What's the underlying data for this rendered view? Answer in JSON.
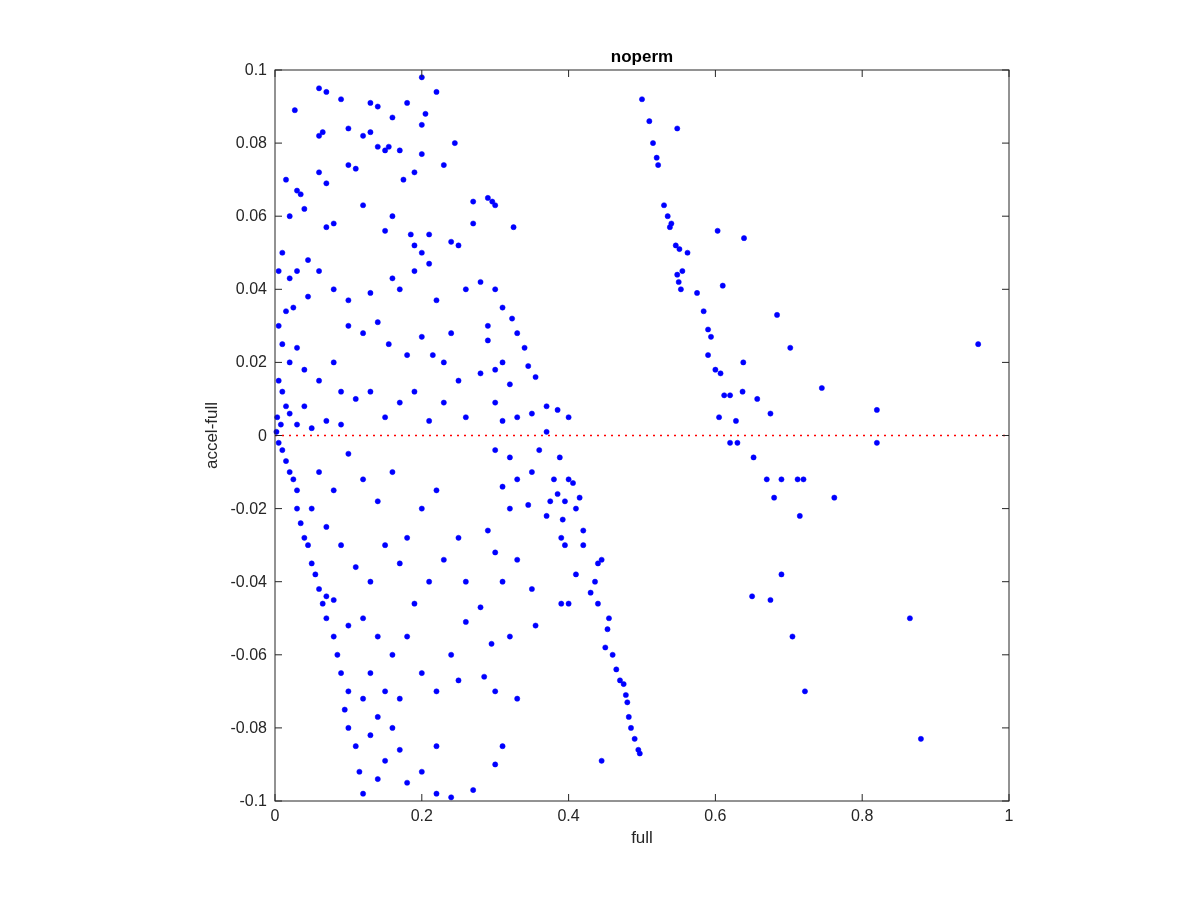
{
  "chart_data": {
    "type": "scatter",
    "title": "noperm",
    "xlabel": "full",
    "ylabel": "accel-full",
    "xlim": [
      0,
      1
    ],
    "ylim": [
      -0.1,
      0.1
    ],
    "xticks": [
      0,
      0.2,
      0.4,
      0.6,
      0.8,
      1
    ],
    "yticks": [
      -0.1,
      -0.08,
      -0.06,
      -0.04,
      -0.02,
      0,
      0.02,
      0.04,
      0.06,
      0.08,
      0.1
    ],
    "grid": false,
    "marker": "circle",
    "ref_lines": [
      {
        "axis": "y",
        "value": 0,
        "color": "#ff0000",
        "line_style": "dotted"
      }
    ],
    "series": [
      {
        "color": "#0000ff",
        "x": [
          0.5,
          0.51,
          0.515,
          0.52,
          0.522,
          0.548,
          0.53,
          0.535,
          0.538,
          0.54,
          0.546,
          0.551,
          0.562,
          0.548,
          0.55,
          0.553,
          0.555,
          0.575,
          0.584,
          0.603,
          0.59,
          0.594,
          0.59,
          0.6,
          0.61,
          0.607,
          0.612,
          0.62,
          0.628,
          0.637,
          0.639,
          0.638,
          0.657,
          0.684,
          0.675,
          0.702,
          0.745,
          0.82,
          0.958,
          0.605,
          0.62,
          0.63,
          0.652,
          0.67,
          0.69,
          0.68,
          0.712,
          0.72,
          0.762,
          0.715,
          0.82,
          0.69,
          0.65,
          0.675,
          0.705,
          0.865,
          0.722,
          0.88,
          0.46,
          0.465,
          0.47,
          0.475,
          0.478,
          0.48,
          0.482,
          0.485,
          0.49,
          0.495,
          0.497,
          0.455,
          0.453,
          0.45,
          0.445,
          0.44,
          0.44,
          0.445,
          0.436,
          0.43,
          0.42,
          0.42,
          0.415,
          0.41,
          0.406,
          0.4,
          0.395,
          0.385,
          0.392,
          0.39,
          0.395,
          0.41,
          0.39,
          0.4,
          0.33,
          0.35,
          0.355,
          0.38,
          0.375,
          0.37,
          0.388,
          0.36,
          0.37,
          0.37,
          0.35,
          0.385,
          0.4,
          0.345,
          0.355,
          0.34,
          0.323,
          0.33,
          0.31,
          0.3,
          0.28,
          0.29,
          0.28,
          0.29,
          0.3,
          0.31,
          0.32,
          0.33,
          0.3,
          0.31,
          0.32,
          0.3,
          0.35,
          0.345,
          0.33,
          0.31,
          0.32,
          0.29,
          0.3,
          0.33,
          0.31,
          0.295,
          0.32,
          0.31,
          0.3,
          0.285,
          0.3,
          0.27,
          0.25,
          0.26,
          0.28,
          0.296,
          0.3,
          0.29,
          0.27,
          0.27,
          0.325,
          0.25,
          0.24,
          0.26,
          0.22,
          0.2,
          0.23,
          0.245,
          0.2,
          0.2,
          0.205,
          0.18,
          0.19,
          0.17,
          0.06,
          0.07,
          0.09,
          0.027,
          0.13,
          0.14,
          0.12,
          0.13,
          0.065,
          0.06,
          0.1,
          0.16,
          0.015,
          0.03,
          0.035,
          0.04,
          0.02,
          0.07,
          0.06,
          0.1,
          0.11,
          0.14,
          0.15,
          0.155,
          0.08,
          0.07,
          0.12,
          0.15,
          0.16,
          0.175,
          0.185,
          0.19,
          0.2,
          0.21,
          0.06,
          0.045,
          0.03,
          0.02,
          0.01,
          0.005,
          0.015,
          0.025,
          0.045,
          0.08,
          0.1,
          0.13,
          0.16,
          0.17,
          0.19,
          0.21,
          0.22,
          0.1,
          0.12,
          0.14,
          0.155,
          0.18,
          0.2,
          0.215,
          0.23,
          0.24,
          0.005,
          0.01,
          0.02,
          0.03,
          0.04,
          0.06,
          0.08,
          0.09,
          0.11,
          0.13,
          0.15,
          0.17,
          0.19,
          0.21,
          0.23,
          0.25,
          0.26,
          0.005,
          0.01,
          0.015,
          0.003,
          0.008,
          0.02,
          0.03,
          0.04,
          0.05,
          0.07,
          0.09,
          0.002,
          0.005,
          0.01,
          0.015,
          0.02,
          0.025,
          0.03,
          0.03,
          0.035,
          0.04,
          0.045,
          0.05,
          0.055,
          0.06,
          0.065,
          0.07,
          0.07,
          0.08,
          0.085,
          0.09,
          0.1,
          0.095,
          0.1,
          0.11,
          0.115,
          0.12,
          0.14,
          0.15,
          0.13,
          0.14,
          0.16,
          0.17,
          0.18,
          0.2,
          0.22,
          0.24,
          0.22,
          0.06,
          0.08,
          0.05,
          0.07,
          0.1,
          0.12,
          0.14,
          0.16,
          0.09,
          0.11,
          0.13,
          0.15,
          0.17,
          0.18,
          0.2,
          0.22,
          0.21,
          0.19,
          0.23,
          0.25,
          0.26,
          0.12,
          0.14,
          0.16,
          0.18,
          0.2,
          0.22,
          0.13,
          0.15,
          0.17,
          0.12,
          0.24,
          0.08,
          0.1
        ],
        "values": [
          0.092,
          0.086,
          0.08,
          0.076,
          0.074,
          0.084,
          0.063,
          0.06,
          0.057,
          0.058,
          0.052,
          0.051,
          0.05,
          0.044,
          0.042,
          0.04,
          0.045,
          0.039,
          0.034,
          0.056,
          0.029,
          0.027,
          0.022,
          0.018,
          0.041,
          0.017,
          0.011,
          0.011,
          0.004,
          0.012,
          0.054,
          0.02,
          0.01,
          0.033,
          0.006,
          0.024,
          0.013,
          0.007,
          0.025,
          0.005,
          -0.002,
          -0.002,
          -0.006,
          -0.012,
          -0.012,
          -0.017,
          -0.012,
          -0.012,
          -0.017,
          -0.022,
          -0.002,
          -0.038,
          -0.044,
          -0.045,
          -0.055,
          -0.05,
          -0.07,
          -0.083,
          -0.06,
          -0.064,
          -0.067,
          -0.068,
          -0.071,
          -0.073,
          -0.077,
          -0.08,
          -0.083,
          -0.086,
          -0.087,
          -0.05,
          -0.053,
          -0.058,
          -0.089,
          -0.046,
          -0.035,
          -0.034,
          -0.04,
          -0.043,
          -0.03,
          -0.026,
          -0.017,
          -0.02,
          -0.013,
          -0.012,
          -0.018,
          -0.016,
          -0.023,
          -0.028,
          -0.03,
          -0.038,
          -0.046,
          -0.046,
          -0.072,
          -0.042,
          -0.052,
          -0.012,
          -0.018,
          -0.022,
          -0.006,
          -0.004,
          0.001,
          0.008,
          0.006,
          0.007,
          0.005,
          0.019,
          0.016,
          0.024,
          0.032,
          0.028,
          0.035,
          0.04,
          0.042,
          0.03,
          0.017,
          0.026,
          0.018,
          0.02,
          0.014,
          0.005,
          0.009,
          0.004,
          -0.006,
          -0.004,
          -0.01,
          -0.019,
          -0.012,
          -0.014,
          -0.02,
          -0.026,
          -0.032,
          -0.034,
          -0.04,
          -0.057,
          -0.055,
          -0.085,
          -0.09,
          -0.066,
          -0.07,
          -0.097,
          -0.067,
          -0.051,
          -0.047,
          0.064,
          0.063,
          0.065,
          0.064,
          0.058,
          0.057,
          0.052,
          0.053,
          0.04,
          0.094,
          0.098,
          0.074,
          0.08,
          0.085,
          0.077,
          0.088,
          0.091,
          0.072,
          0.078,
          0.095,
          0.094,
          0.092,
          0.089,
          0.091,
          0.09,
          0.082,
          0.083,
          0.083,
          0.082,
          0.084,
          0.087,
          0.07,
          0.067,
          0.066,
          0.062,
          0.06,
          0.069,
          0.072,
          0.074,
          0.073,
          0.079,
          0.078,
          0.079,
          0.058,
          0.057,
          0.063,
          0.056,
          0.06,
          0.07,
          0.055,
          0.052,
          0.05,
          0.055,
          0.045,
          0.048,
          0.045,
          0.043,
          0.05,
          0.045,
          0.034,
          0.035,
          0.038,
          0.04,
          0.037,
          0.039,
          0.043,
          0.04,
          0.045,
          0.047,
          0.037,
          0.03,
          0.028,
          0.031,
          0.025,
          0.022,
          0.027,
          0.022,
          0.02,
          0.028,
          0.03,
          0.025,
          0.02,
          0.024,
          0.018,
          0.015,
          0.02,
          0.012,
          0.01,
          0.012,
          0.005,
          0.009,
          0.012,
          0.004,
          0.009,
          0.015,
          0.005,
          0.015,
          0.012,
          0.008,
          0.005,
          0.003,
          0.006,
          0.003,
          0.008,
          0.002,
          0.004,
          0.003,
          0.001,
          -0.002,
          -0.004,
          -0.007,
          -0.01,
          -0.012,
          -0.015,
          -0.02,
          -0.024,
          -0.028,
          -0.03,
          -0.035,
          -0.038,
          -0.042,
          -0.046,
          -0.05,
          -0.044,
          -0.055,
          -0.06,
          -0.065,
          -0.07,
          -0.075,
          -0.08,
          -0.085,
          -0.092,
          -0.098,
          -0.094,
          -0.089,
          -0.082,
          -0.077,
          -0.08,
          -0.086,
          -0.095,
          -0.092,
          -0.085,
          -0.099,
          -0.098,
          -0.01,
          -0.015,
          -0.02,
          -0.025,
          -0.005,
          -0.012,
          -0.018,
          -0.01,
          -0.03,
          -0.036,
          -0.04,
          -0.03,
          -0.035,
          -0.028,
          -0.02,
          -0.015,
          -0.04,
          -0.046,
          -0.034,
          -0.028,
          -0.04,
          -0.05,
          -0.055,
          -0.06,
          -0.055,
          -0.065,
          -0.07,
          -0.065,
          -0.07,
          -0.072,
          -0.072,
          -0.06,
          -0.045,
          -0.052
        ]
      }
    ]
  }
}
